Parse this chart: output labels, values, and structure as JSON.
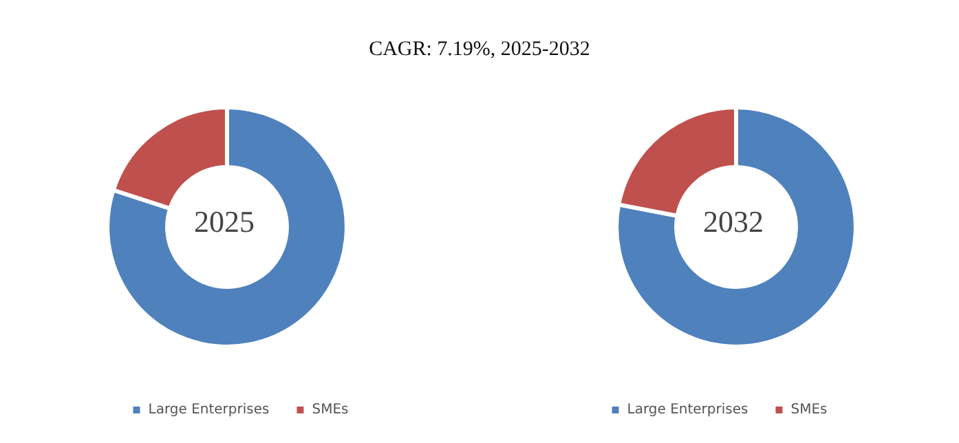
{
  "chart_data": [
    {
      "type": "donut",
      "title": "CAGR: 7.19%, 2025-2032",
      "annotations": [
        "2025"
      ],
      "categories": [
        "Large Enterprises",
        "SMEs"
      ],
      "values": [
        80,
        20
      ],
      "colors": [
        "#4f81bd",
        "#c0504d"
      ],
      "legend": "bottom"
    },
    {
      "type": "donut",
      "annotations": [
        "2032"
      ],
      "categories": [
        "Large Enterprises",
        "SMEs"
      ],
      "values": [
        78,
        22
      ],
      "colors": [
        "#4f81bd",
        "#c0504d"
      ],
      "legend": "bottom"
    }
  ]
}
